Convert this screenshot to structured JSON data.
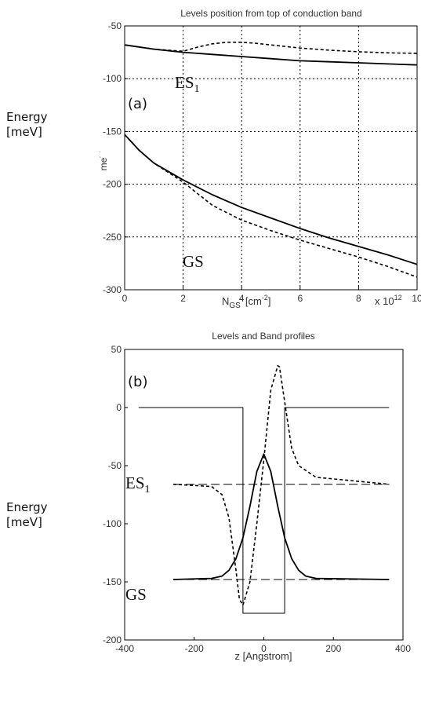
{
  "chart_data": [
    {
      "type": "line",
      "panel_label": "(a)",
      "title": "Levels position from top of conduction band",
      "xlabel_main": "N",
      "xlabel_sub": "GS",
      "xlabel_unit": "[cm",
      "xlabel_sup": "-2",
      "xlabel_close": "]",
      "x_multiplier_base": "x 10",
      "x_multiplier_exp": "12",
      "ylabel_line1": "Energy",
      "ylabel_line2": "[meV]",
      "ylabel_stray": "meV",
      "xlim": [
        0,
        10
      ],
      "ylim": [
        -300,
        -50
      ],
      "xticks": [
        0,
        2,
        4,
        6,
        8,
        10
      ],
      "yticks": [
        -50,
        -100,
        -150,
        -200,
        -250,
        -300
      ],
      "grid": true,
      "annotations": [
        {
          "text": "ES",
          "sub": "1",
          "x": 2.3,
          "y": -105
        },
        {
          "text": "GS",
          "x": 2.3,
          "y": -280
        }
      ],
      "series": [
        {
          "style": "solid",
          "x": [
            0,
            1,
            2,
            3,
            4,
            5,
            6,
            7,
            8,
            9,
            10
          ],
          "y": [
            -68,
            -72,
            -75,
            -77,
            -79,
            -81,
            -83,
            -84,
            -85,
            -86,
            -87
          ]
        },
        {
          "style": "dashed",
          "x": [
            0,
            1,
            2,
            2.5,
            3,
            3.5,
            4,
            4.5,
            5,
            6,
            7,
            8,
            9,
            10
          ],
          "y": [
            -68,
            -72,
            -74,
            -70,
            -67,
            -65.5,
            -65.5,
            -66.5,
            -68,
            -71,
            -73,
            -74.5,
            -75.5,
            -76
          ]
        },
        {
          "style": "solid",
          "x": [
            0,
            0.5,
            1,
            2,
            3,
            4,
            5,
            6,
            7,
            8,
            9,
            10
          ],
          "y": [
            -153,
            -168,
            -180,
            -196,
            -210,
            -222,
            -232,
            -242,
            -251,
            -259,
            -267,
            -276
          ]
        },
        {
          "style": "dashed",
          "x": [
            0,
            0.5,
            1,
            2,
            3,
            4,
            5,
            6,
            7,
            8,
            9,
            10
          ],
          "y": [
            -153,
            -168,
            -180,
            -198,
            -220,
            -234,
            -244,
            -253,
            -261,
            -269,
            -278,
            -288
          ]
        }
      ]
    },
    {
      "type": "line",
      "panel_label": "(b)",
      "title": "Levels and Band profiles",
      "xlabel": "z  [Angstrom]",
      "ylabel_line1": "Energy",
      "ylabel_line2": "[meV]",
      "xlim": [
        -400,
        400
      ],
      "ylim": [
        -200,
        50
      ],
      "xticks": [
        -400,
        -200,
        0,
        200,
        400
      ],
      "yticks": [
        50,
        0,
        -50,
        -100,
        -150,
        -200
      ],
      "grid": false,
      "annotations": [
        {
          "text": "ES",
          "sub": "1",
          "x": -380,
          "y": -64
        },
        {
          "text": "GS",
          "x": -380,
          "y": -162
        }
      ],
      "series": [
        {
          "style": "band",
          "x": [
            -360,
            -60,
            -60,
            60,
            60,
            360
          ],
          "y": [
            0,
            0,
            -177,
            -177,
            0,
            0
          ]
        },
        {
          "style": "longdash",
          "x": [
            -260,
            360
          ],
          "y": [
            -66,
            -66
          ]
        },
        {
          "style": "longdash",
          "x": [
            -260,
            360
          ],
          "y": [
            -148,
            -148
          ]
        },
        {
          "style": "solid",
          "x": [
            -260,
            -150,
            -120,
            -100,
            -80,
            -60,
            -40,
            -20,
            0,
            20,
            40,
            60,
            80,
            100,
            120,
            150,
            360
          ],
          "y": [
            -148,
            -147,
            -145,
            -140,
            -130,
            -112,
            -85,
            -55,
            -40,
            -55,
            -85,
            -112,
            -130,
            -140,
            -145,
            -147,
            -148
          ]
        },
        {
          "style": "dashed",
          "x": [
            -260,
            -150,
            -120,
            -100,
            -80,
            -70,
            -60,
            -40,
            -20,
            0,
            20,
            40,
            45,
            60,
            80,
            100,
            150,
            360
          ],
          "y": [
            -66,
            -68,
            -75,
            -95,
            -140,
            -165,
            -170,
            -150,
            -100,
            -45,
            15,
            36,
            35,
            5,
            -35,
            -50,
            -60,
            -66
          ]
        }
      ]
    }
  ]
}
